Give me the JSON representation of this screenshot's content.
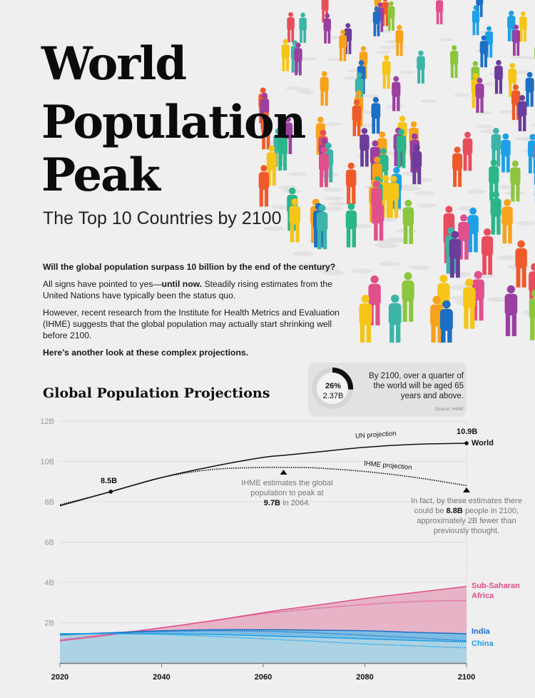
{
  "title_lines": [
    "World",
    "Population",
    "Peak"
  ],
  "subtitle": "The Top 10 Countries by 2100",
  "intro": {
    "question": "Will the global population surpass 10 billion by the end of the century?",
    "p1_start": "All signs have pointed to yes—",
    "p1_bold": "until now.",
    "p1_end": " Steadily rising estimates from the United Nations have typically been the status quo.",
    "p2": "However, recent research from the Institute for Health Metrics and Evaluation (IHME) suggests that the global population may actually start shrinking well before 2100.",
    "closing": "Here’s another look at these complex projections."
  },
  "callout": {
    "percent": "26%",
    "value": "2.37B",
    "share": 0.26,
    "text": "By 2100, over a quarter of the world will be aged 65 years and above.",
    "source": "Source: IHME"
  },
  "colors": {
    "world": "#111111",
    "ssa": "#e0508a",
    "ssa_fill": "#e6b3c7",
    "india": "#1c6fc4",
    "india_fill": "#7dbde3",
    "china": "#1ea0e6",
    "china_fill": "#acd3e4",
    "grid": "#dcdcdc"
  },
  "chart_data": {
    "type": "line",
    "title": "Global Population Projections",
    "x": [
      2020,
      2030,
      2040,
      2050,
      2060,
      2064,
      2070,
      2080,
      2090,
      2100
    ],
    "xticks": [
      "2020",
      "2040",
      "2060",
      "2080",
      "2100"
    ],
    "yticks": [
      "2B",
      "4B",
      "6B",
      "8B",
      "10B",
      "12B"
    ],
    "ylim": [
      0,
      12
    ],
    "yunit": "billions",
    "series": [
      {
        "name": "World",
        "projection": "UN",
        "values": [
          7.8,
          8.5,
          9.2,
          9.75,
          10.2,
          10.3,
          10.45,
          10.7,
          10.85,
          10.9
        ]
      },
      {
        "name": "World",
        "projection": "IHME",
        "values": [
          7.85,
          8.5,
          9.2,
          9.6,
          9.7,
          9.7,
          9.68,
          9.5,
          9.2,
          8.8
        ]
      },
      {
        "name": "Sub-Saharan Africa",
        "projection": "UN",
        "values": [
          1.1,
          1.4,
          1.75,
          2.1,
          2.5,
          2.65,
          2.85,
          3.2,
          3.5,
          3.8
        ]
      },
      {
        "name": "Sub-Saharan Africa",
        "projection": "IHME",
        "values": [
          1.15,
          1.45,
          1.75,
          2.1,
          2.45,
          2.55,
          2.7,
          2.9,
          3.05,
          3.1
        ]
      },
      {
        "name": "India",
        "projection": "UN",
        "values": [
          1.4,
          1.5,
          1.6,
          1.65,
          1.65,
          1.65,
          1.63,
          1.6,
          1.52,
          1.45
        ]
      },
      {
        "name": "India",
        "projection": "IHME",
        "values": [
          1.4,
          1.5,
          1.55,
          1.6,
          1.58,
          1.55,
          1.5,
          1.38,
          1.25,
          1.1
        ]
      },
      {
        "name": "China",
        "projection": "UN",
        "values": [
          1.45,
          1.47,
          1.45,
          1.42,
          1.35,
          1.32,
          1.28,
          1.2,
          1.12,
          1.05
        ]
      },
      {
        "name": "China",
        "projection": "IHME",
        "values": [
          1.45,
          1.45,
          1.42,
          1.32,
          1.2,
          1.15,
          1.08,
          0.95,
          0.85,
          0.75
        ]
      }
    ],
    "labels": {
      "un_projection": "UN projection",
      "ihme_projection": "IHME projection",
      "world_2100": "10.9B",
      "world": "World",
      "world_2030": "8.5B",
      "ssa": "Sub-Saharan Africa",
      "india": "India",
      "china": "China"
    },
    "annotations": {
      "peak_text": "IHME estimates the global population to peak at",
      "peak_value": "9.7B",
      "peak_year": " in 2064.",
      "end_text_1": "In fact, by these estimates there could be ",
      "end_value": "8.8B",
      "end_text_2": " people in 2100, approximately 2B fewer than previously thought."
    }
  }
}
